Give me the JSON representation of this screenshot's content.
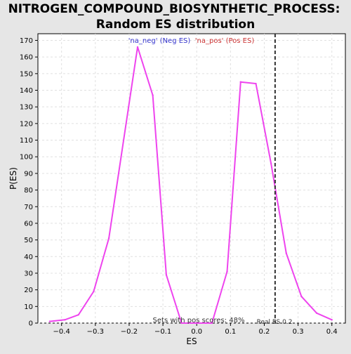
{
  "chart_data": {
    "type": "line",
    "title_line1": "NITROGEN_COMPOUND_BIOSYNTHETIC_PROCESS:",
    "title_line2": "Random ES distribution",
    "xlabel": "ES",
    "ylabel": "P(ES)",
    "xlim": [
      -0.47,
      0.44
    ],
    "ylim": [
      0,
      174
    ],
    "x_ticks": [
      -0.4,
      -0.3,
      -0.2,
      -0.1,
      0.0,
      0.1,
      0.2,
      0.3,
      0.4
    ],
    "x_tick_labels": [
      "−0.4",
      "−0.3",
      "−0.2",
      "−0.1",
      "0.0",
      "0.1",
      "0.2",
      "0.3",
      "0.4"
    ],
    "y_ticks": [
      0,
      10,
      20,
      30,
      40,
      50,
      60,
      70,
      80,
      90,
      100,
      110,
      120,
      130,
      140,
      150,
      160,
      170
    ],
    "grid": true,
    "line_color": "#ee44ee",
    "series": [
      {
        "x": [
          -0.435,
          -0.39,
          -0.35,
          -0.305,
          -0.26,
          -0.175,
          -0.13,
          -0.09,
          -0.045,
          0.0,
          0.045,
          0.09,
          0.13,
          0.175,
          0.22,
          0.265,
          0.31,
          0.355,
          0.4
        ],
        "y": [
          1,
          2,
          5,
          19,
          51,
          166,
          137,
          29,
          0,
          0,
          0,
          31,
          145,
          144,
          96,
          42,
          16,
          6,
          2
        ]
      }
    ],
    "legend": {
      "neg_label": "'na_neg' (Neg ES)",
      "pos_label": "'na_pos' (Pos ES)",
      "neg_color": "#3333cc",
      "pos_color": "#cc3333"
    },
    "real_es": {
      "value": 0.232,
      "label": "Real ES 0.2"
    },
    "footer_note": "Sets with pos scores: 48%"
  }
}
